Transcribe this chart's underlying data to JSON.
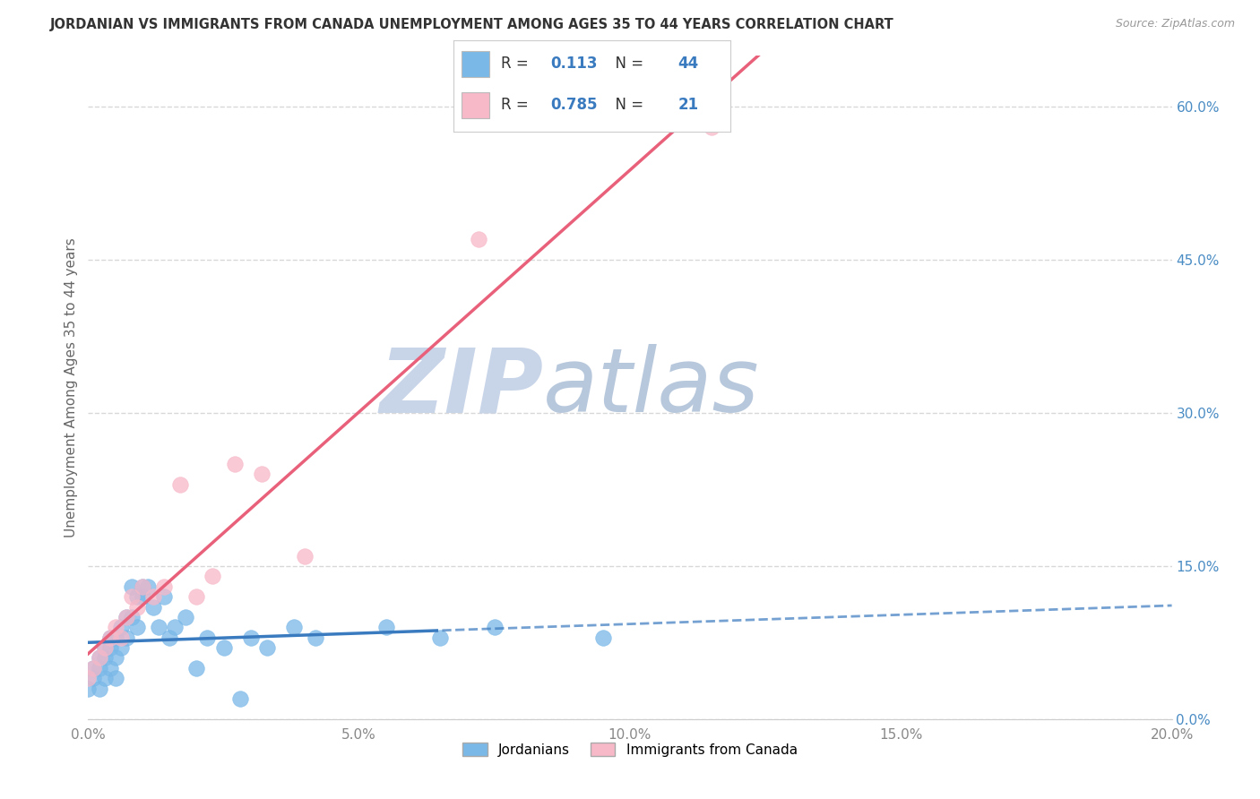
{
  "title": "JORDANIAN VS IMMIGRANTS FROM CANADA UNEMPLOYMENT AMONG AGES 35 TO 44 YEARS CORRELATION CHART",
  "source": "Source: ZipAtlas.com",
  "ylabel": "Unemployment Among Ages 35 to 44 years",
  "xlim": [
    0.0,
    0.2
  ],
  "ylim": [
    0.0,
    0.65
  ],
  "xticks": [
    0.0,
    0.05,
    0.1,
    0.15,
    0.2
  ],
  "yticks_right": [
    0.0,
    0.15,
    0.3,
    0.45,
    0.6
  ],
  "jordanians_x": [
    0.0,
    0.001,
    0.001,
    0.002,
    0.002,
    0.002,
    0.003,
    0.003,
    0.003,
    0.004,
    0.004,
    0.004,
    0.005,
    0.005,
    0.005,
    0.006,
    0.006,
    0.007,
    0.007,
    0.008,
    0.008,
    0.009,
    0.009,
    0.01,
    0.01,
    0.011,
    0.012,
    0.013,
    0.014,
    0.015,
    0.016,
    0.018,
    0.02,
    0.022,
    0.025,
    0.028,
    0.03,
    0.033,
    0.038,
    0.042,
    0.055,
    0.065,
    0.075,
    0.095
  ],
  "jordanians_y": [
    0.03,
    0.04,
    0.05,
    0.03,
    0.05,
    0.06,
    0.04,
    0.06,
    0.07,
    0.05,
    0.07,
    0.08,
    0.04,
    0.06,
    0.08,
    0.07,
    0.09,
    0.08,
    0.1,
    0.1,
    0.13,
    0.09,
    0.12,
    0.13,
    0.12,
    0.13,
    0.11,
    0.09,
    0.12,
    0.08,
    0.09,
    0.1,
    0.05,
    0.08,
    0.07,
    0.02,
    0.08,
    0.07,
    0.09,
    0.08,
    0.09,
    0.08,
    0.09,
    0.08
  ],
  "immigrants_x": [
    0.0,
    0.001,
    0.002,
    0.003,
    0.004,
    0.005,
    0.006,
    0.007,
    0.008,
    0.009,
    0.01,
    0.012,
    0.014,
    0.017,
    0.02,
    0.023,
    0.027,
    0.032,
    0.04,
    0.072,
    0.115
  ],
  "immigrants_y": [
    0.04,
    0.05,
    0.06,
    0.07,
    0.08,
    0.09,
    0.08,
    0.1,
    0.12,
    0.11,
    0.13,
    0.12,
    0.13,
    0.23,
    0.12,
    0.14,
    0.25,
    0.24,
    0.16,
    0.47,
    0.58
  ],
  "jordanians_R": 0.113,
  "jordanians_N": 44,
  "immigrants_R": 0.785,
  "immigrants_N": 21,
  "blue_scatter_color": "#7ab8e8",
  "blue_line_color": "#3a7abf",
  "pink_scatter_color": "#f7b8c8",
  "pink_line_color": "#e8607a",
  "watermark_zip_color": "#c8d4e8",
  "watermark_atlas_color": "#b8c8dc",
  "background_color": "#ffffff",
  "grid_color": "#d8d8d8",
  "title_color": "#333333",
  "axis_label_color": "#666666",
  "right_axis_color": "#4a8cc4",
  "tick_color": "#888888"
}
